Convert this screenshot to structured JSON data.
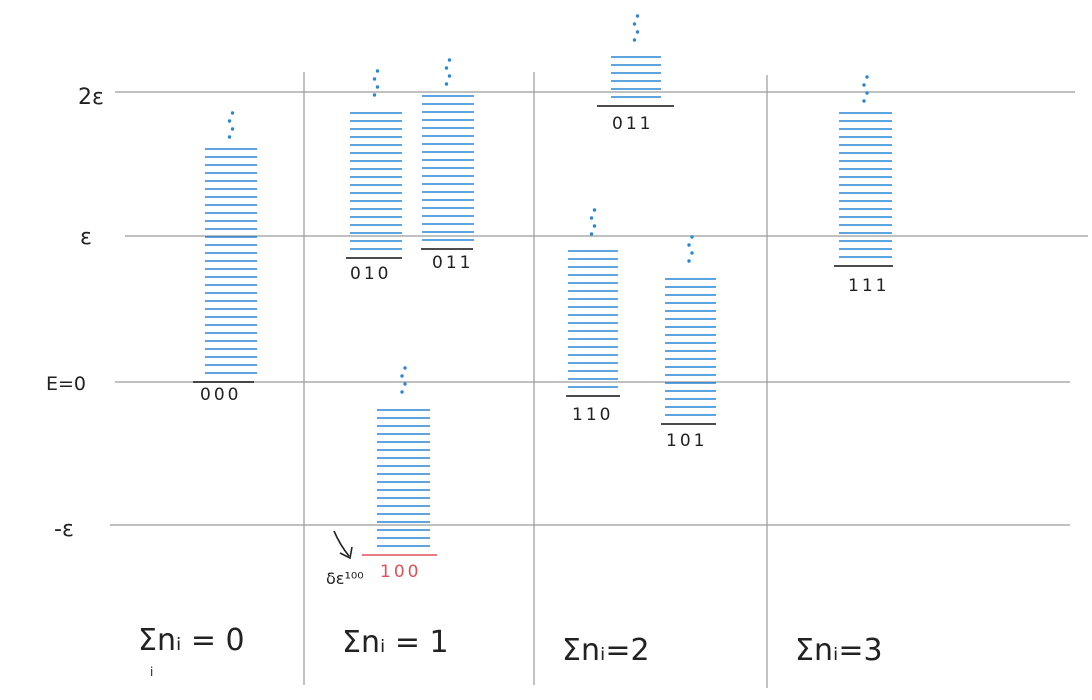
{
  "y_axis_labels": [
    {
      "key": "two_eps",
      "text": "2ε",
      "energy": 2
    },
    {
      "key": "eps",
      "text": "ε",
      "energy": 1
    },
    {
      "key": "zero",
      "text": "E=0",
      "energy": 0
    },
    {
      "key": "neg_eps",
      "text": "-ε",
      "energy": -1
    }
  ],
  "columns": [
    {
      "key": "sum0",
      "label": "Σnᵢ = 0",
      "sub": "i"
    },
    {
      "key": "sum1",
      "label": "Σnᵢ = 1"
    },
    {
      "key": "sum2",
      "label": "Σnᵢ=2"
    },
    {
      "key": "sum3",
      "label": "Σnᵢ=3"
    }
  ],
  "states": [
    {
      "key": "s000",
      "label": "000",
      "column": 0,
      "ground_energy": 0.0,
      "highlight": false
    },
    {
      "key": "s010",
      "label": "010",
      "column": 1,
      "ground_energy": 0.87,
      "highlight": false
    },
    {
      "key": "s011a",
      "label": "011",
      "column": 1,
      "ground_energy": 0.95,
      "highlight": false
    },
    {
      "key": "s100",
      "label": "100",
      "column": 1,
      "ground_energy": -1.2,
      "highlight": true
    },
    {
      "key": "s011b",
      "label": "011",
      "column": 2,
      "ground_energy": 1.9,
      "highlight": false
    },
    {
      "key": "s110",
      "label": "110",
      "column": 2,
      "ground_energy": -0.1,
      "highlight": false
    },
    {
      "key": "s101",
      "label": "101",
      "column": 2,
      "ground_energy": -0.28,
      "highlight": false
    },
    {
      "key": "s111",
      "label": "111",
      "column": 3,
      "ground_energy": 0.8,
      "highlight": false
    }
  ],
  "annotation": {
    "text": "δε¹⁰⁰"
  },
  "colors": {
    "level": "#2a86d6",
    "ground": "#111111",
    "highlight": "#e0505a",
    "grid": "#9a9a9a",
    "ink": "#222222"
  }
}
